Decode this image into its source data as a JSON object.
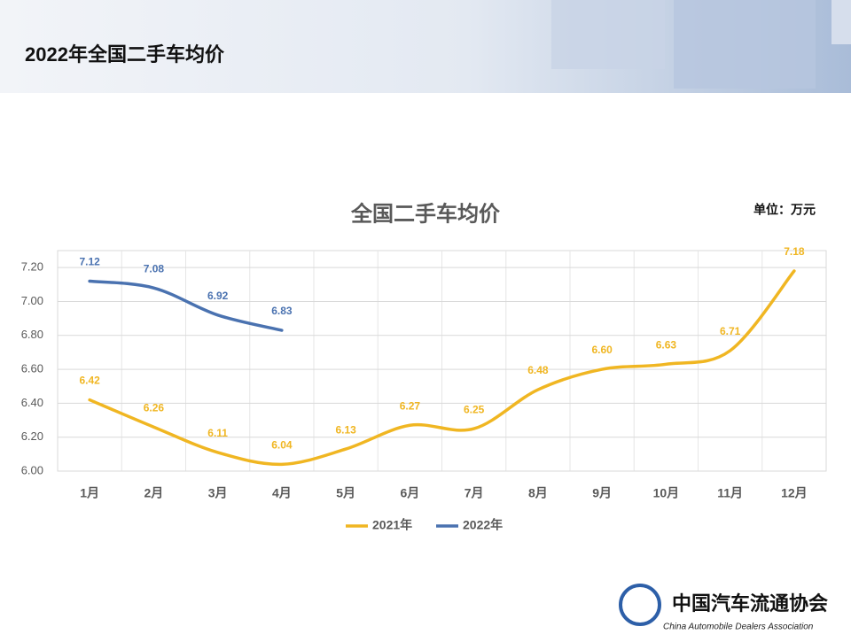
{
  "header": {
    "title": "2022年全国二手车均价"
  },
  "chart_data": {
    "type": "line",
    "title": "全国二手车均价",
    "unit": "单位：万元",
    "categories": [
      "1月",
      "2月",
      "3月",
      "4月",
      "5月",
      "6月",
      "7月",
      "8月",
      "9月",
      "10月",
      "11月",
      "12月"
    ],
    "series": [
      {
        "name": "2021年",
        "color": "#f0b622",
        "values": [
          6.42,
          6.26,
          6.11,
          6.04,
          6.13,
          6.27,
          6.25,
          6.48,
          6.6,
          6.63,
          6.71,
          7.18
        ],
        "value_labels": [
          "6.42",
          "6.26",
          "6.11",
          "6.04",
          "6.13",
          "6.27",
          "6.25",
          "6.48",
          "6.60",
          "6.63",
          "6.71",
          "7.18"
        ]
      },
      {
        "name": "2022年",
        "color": "#4a72b0",
        "values": [
          7.12,
          7.08,
          6.92,
          6.83,
          null,
          null,
          null,
          null,
          null,
          null,
          null,
          null
        ],
        "value_labels": [
          "7.12",
          "7.08",
          "6.92",
          "6.83",
          null,
          null,
          null,
          null,
          null,
          null,
          null,
          null
        ]
      }
    ],
    "ylim": [
      6.0,
      7.3
    ],
    "yticks": [
      {
        "value": 6.0,
        "label": "6.00"
      },
      {
        "value": 6.2,
        "label": "6.20"
      },
      {
        "value": 6.4,
        "label": "6.40"
      },
      {
        "value": 6.6,
        "label": "6.60"
      },
      {
        "value": 6.8,
        "label": "6.80"
      },
      {
        "value": 7.0,
        "label": "7.00"
      },
      {
        "value": 7.2,
        "label": "7.20"
      }
    ],
    "grid": true,
    "smooth": true,
    "legend": "bottom"
  },
  "logo": {
    "name": "中国汽车流通协会",
    "subtitle": "China Automobile Dealers Association"
  }
}
